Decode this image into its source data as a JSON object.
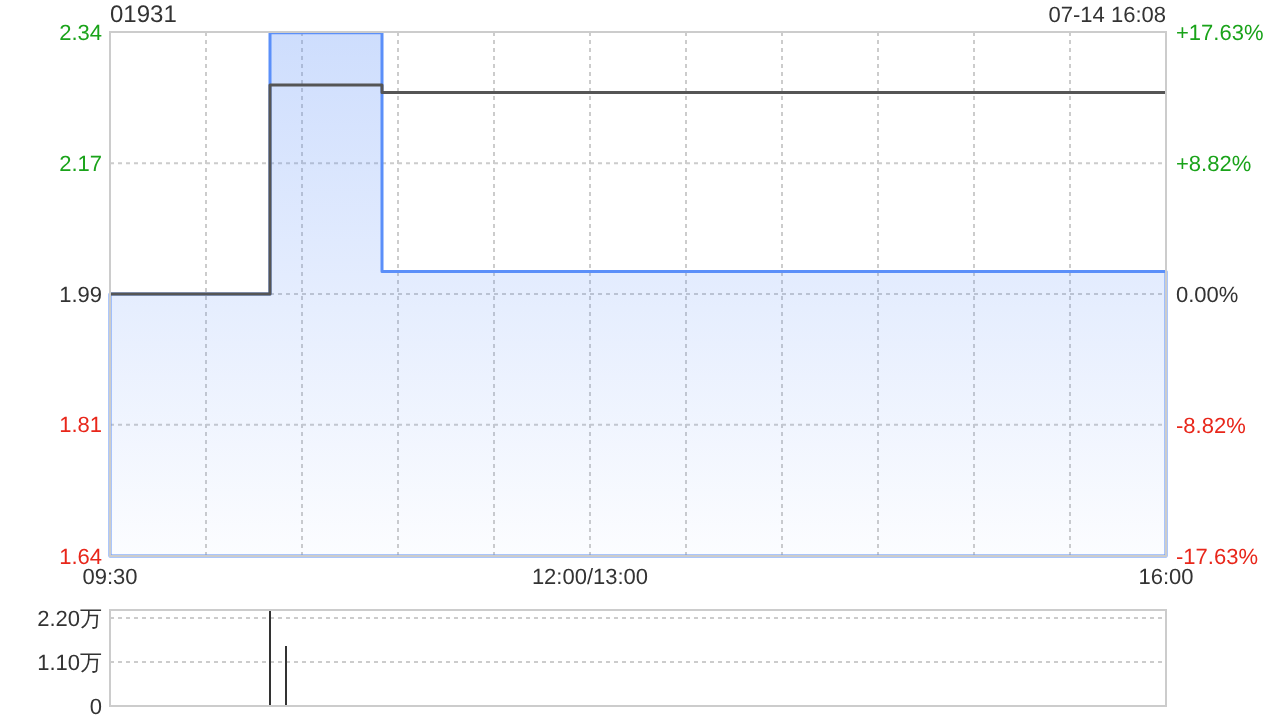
{
  "chart_data": [
    {
      "type": "step",
      "title": "01931",
      "annotations": [
        "07-14 16:08"
      ],
      "categories": [
        "09:30",
        null,
        null,
        null,
        null,
        null,
        null,
        null,
        null,
        null,
        null,
        null,
        null,
        null,
        null,
        null,
        null,
        null,
        null,
        null,
        null,
        null,
        null,
        null,
        null,
        null,
        null,
        null,
        null,
        null,
        "12:00/13:00",
        null,
        null,
        null,
        null,
        null,
        null,
        null,
        null,
        null,
        null,
        null,
        null,
        null,
        null,
        null,
        null,
        null,
        null,
        null,
        null,
        null,
        null,
        null,
        null,
        null,
        null,
        null,
        null,
        null,
        null,
        null,
        null,
        null,
        null,
        null,
        "16:00"
      ],
      "ylim": [
        1.639,
        2.341
      ],
      "yticks": [
        {
          "value": 1.639,
          "label": "1.64"
        },
        {
          "value": 1.815,
          "label": "1.81"
        },
        {
          "value": 1.99,
          "label": "1.99"
        },
        {
          "value": 2.165,
          "label": "2.17"
        },
        {
          "value": 2.341,
          "label": "2.34"
        }
      ],
      "y2lim": [
        -17.63,
        17.63
      ],
      "y2ticks": [
        {
          "value": -17.63,
          "label": "-17.63%"
        },
        {
          "value": -8.82,
          "label": "-8.82%"
        },
        {
          "value": 0,
          "label": "0.00%"
        },
        {
          "value": 8.82,
          "label": "+8.82%"
        },
        {
          "value": 17.63,
          "label": "+17.63%"
        }
      ],
      "grid": true,
      "series": [
        {
          "type": "area",
          "color": "#5b8ff9",
          "values": [
            1.99,
            1.99,
            1.99,
            1.99,
            1.99,
            1.99,
            1.99,
            1.99,
            1.99,
            1.99,
            2.34,
            2.34,
            2.34,
            2.34,
            2.34,
            2.34,
            2.34,
            2.02,
            2.02,
            2.02,
            2.02,
            2.02,
            2.02,
            2.02,
            2.02,
            2.02,
            2.02,
            2.02,
            2.02,
            2.02,
            2.02,
            2.02,
            2.02,
            2.02,
            2.02,
            2.02,
            2.02,
            2.02,
            2.02,
            2.02,
            2.02,
            2.02,
            2.02,
            2.02,
            2.02,
            2.02,
            2.02,
            2.02,
            2.02,
            2.02,
            2.02,
            2.02,
            2.02,
            2.02,
            2.02,
            2.02,
            2.02,
            2.02,
            2.02,
            2.02,
            2.02,
            2.02,
            2.02,
            2.02,
            2.02,
            2.02,
            2.02
          ]
        },
        {
          "color": "#555555",
          "values": [
            1.99,
            1.99,
            1.99,
            1.99,
            1.99,
            1.99,
            1.99,
            1.99,
            1.99,
            1.99,
            2.27,
            2.27,
            2.27,
            2.27,
            2.27,
            2.27,
            2.27,
            2.26,
            2.26,
            2.26,
            2.26,
            2.26,
            2.26,
            2.26,
            2.26,
            2.26,
            2.26,
            2.26,
            2.26,
            2.26,
            2.26,
            2.26,
            2.26,
            2.26,
            2.26,
            2.26,
            2.26,
            2.26,
            2.26,
            2.26,
            2.26,
            2.26,
            2.26,
            2.26,
            2.26,
            2.26,
            2.26,
            2.26,
            2.26,
            2.26,
            2.26,
            2.26,
            2.26,
            2.26,
            2.26,
            2.26,
            2.26,
            2.26,
            2.26,
            2.26,
            2.26,
            2.26,
            2.26,
            2.26,
            2.26,
            2.26,
            2.26
          ]
        }
      ]
    },
    {
      "type": "bar",
      "categories": [
        null,
        null,
        null,
        null,
        null,
        null,
        null,
        null,
        null,
        null,
        null,
        null,
        null,
        null,
        null,
        null,
        null,
        null,
        null,
        null,
        null,
        null,
        null,
        null,
        null,
        null,
        null,
        null,
        null,
        null,
        null,
        null,
        null,
        null,
        null,
        null,
        null,
        null,
        null,
        null,
        null,
        null,
        null,
        null,
        null,
        null,
        null,
        null,
        null,
        null,
        null,
        null,
        null,
        null,
        null,
        null,
        null,
        null,
        null,
        null,
        null,
        null,
        null,
        null,
        null,
        null,
        null
      ],
      "ylim": [
        0,
        2.4
      ],
      "yticks": [
        0,
        {
          "value": 1.1,
          "label": "1.10万"
        },
        {
          "value": 2.2,
          "label": "2.20万"
        }
      ],
      "grid": "y",
      "tick_labels": "y",
      "values": [
        0,
        0,
        0,
        0,
        0,
        0,
        0,
        0,
        0,
        0,
        2.4,
        1.5,
        0,
        0,
        0,
        0,
        0,
        0,
        0,
        0,
        0,
        0,
        0,
        0,
        0,
        0,
        0,
        0,
        0,
        0,
        0,
        0,
        0,
        0,
        0,
        0,
        0,
        0,
        0,
        0,
        0,
        0,
        0,
        0,
        0,
        0,
        0,
        0,
        0,
        0,
        0,
        0,
        0,
        0,
        0,
        0,
        0,
        0,
        0,
        0,
        0,
        0,
        0,
        0,
        0,
        0,
        0
      ],
      "color": "#333333"
    }
  ]
}
